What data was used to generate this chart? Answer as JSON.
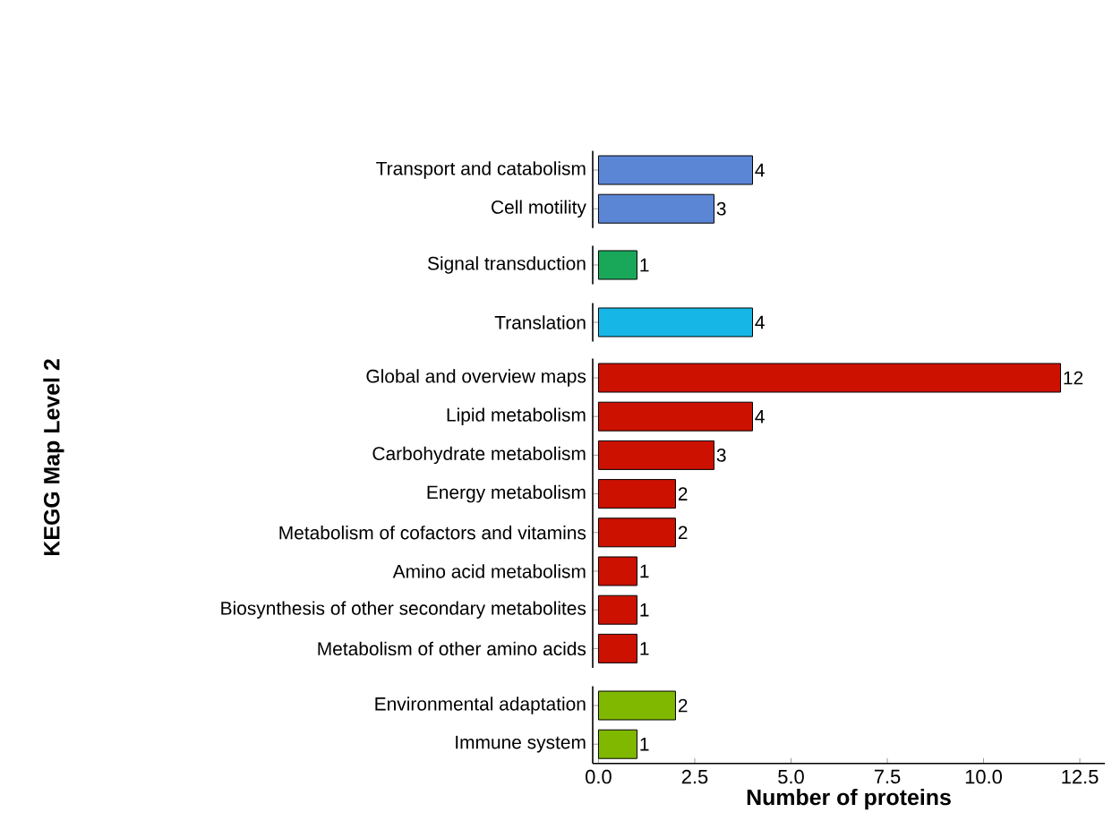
{
  "chart_data": [
    {
      "type": "bar",
      "orientation": "horizontal",
      "categories": [
        "Transport and catabolism",
        "Cell motility"
      ],
      "values": [
        4,
        3
      ],
      "color": "#5b86d6",
      "data_labels": true,
      "tick_labels": "y"
    },
    {
      "type": "bar",
      "orientation": "horizontal",
      "categories": [
        "Signal transduction"
      ],
      "values": [
        1
      ],
      "color": "#19a85a",
      "data_labels": true,
      "tick_labels": "y"
    },
    {
      "type": "bar",
      "orientation": "horizontal",
      "categories": [
        "Translation"
      ],
      "values": [
        4
      ],
      "color": "#16b6e6",
      "data_labels": true,
      "tick_labels": "y"
    },
    {
      "type": "bar",
      "orientation": "horizontal",
      "ylabel": "KEGG Map Level 2",
      "categories": [
        "Global and overview maps",
        "Lipid metabolism",
        "Carbohydrate metabolism",
        "Energy metabolism",
        "Metabolism of cofactors and vitamins",
        "Amino acid metabolism",
        "Biosynthesis of other secondary metabolites",
        "Metabolism of other amino acids"
      ],
      "values": [
        12,
        4,
        3,
        2,
        2,
        1,
        1,
        1
      ],
      "color": "#cc1100",
      "data_labels": true,
      "tick_labels": "y"
    },
    {
      "type": "bar",
      "orientation": "horizontal",
      "xlabel": "Number of proteins",
      "categories": [
        "Environmental adaptation",
        "Immune system"
      ],
      "values": [
        2,
        1
      ],
      "color": "#80b800",
      "xlim": [
        -0.15,
        13.15
      ],
      "data_labels": true,
      "xticks": [
        {
          "value": 0,
          "label": "0.0"
        },
        {
          "value": 2.5,
          "label": "2.5"
        },
        {
          "value": 5,
          "label": "5.0"
        },
        {
          "value": 7.5,
          "label": "7.5"
        },
        {
          "value": 10,
          "label": "10.0"
        },
        {
          "value": 12.5,
          "label": "12.5"
        }
      ]
    }
  ]
}
